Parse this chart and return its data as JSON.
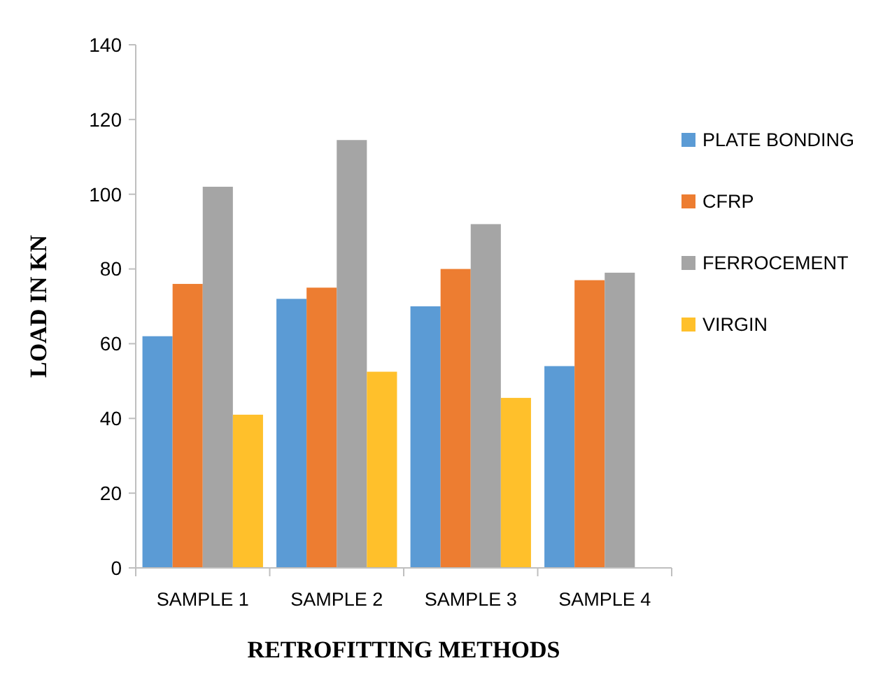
{
  "chart_data": {
    "type": "bar",
    "xlabel": "RETROFITTING METHODS",
    "ylabel": "LOAD IN KN",
    "categories": [
      "SAMPLE 1",
      "SAMPLE 2",
      "SAMPLE 3",
      "SAMPLE 4"
    ],
    "series": [
      {
        "name": "PLATE BONDING",
        "color": "#5b9bd5",
        "values": [
          62,
          72,
          70,
          54
        ]
      },
      {
        "name": "CFRP",
        "color": "#ed7d31",
        "values": [
          76,
          75,
          80,
          77
        ]
      },
      {
        "name": "FERROCEMENT",
        "color": "#a5a5a5",
        "values": [
          102,
          114.5,
          92,
          79
        ]
      },
      {
        "name": "VIRGIN",
        "color": "#ffc02b",
        "values": [
          41,
          52.5,
          45.5,
          null
        ]
      }
    ],
    "ylim": [
      0,
      140
    ],
    "yticks": [
      0,
      20,
      40,
      60,
      80,
      100,
      120,
      140
    ],
    "grid": false,
    "legend": "right"
  }
}
